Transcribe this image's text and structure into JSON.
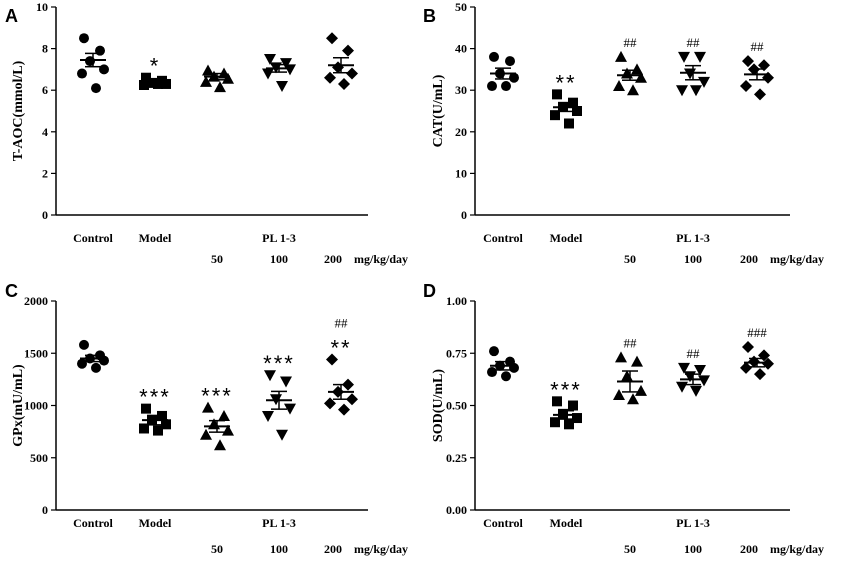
{
  "chart_data": [
    {
      "panel": "A",
      "type": "scatter",
      "ylabel": "T-AOC(mmol/L)",
      "ylim": [
        0,
        10
      ],
      "yticks": [
        0,
        2,
        4,
        6,
        8,
        10
      ],
      "groups": [
        {
          "name": "Control",
          "marker": "circle",
          "values": [
            8.5,
            7.9,
            7.4,
            7.0,
            6.8,
            6.1
          ],
          "mean": 7.45,
          "sem": 0.32,
          "sig": "",
          "hash": ""
        },
        {
          "name": "Model",
          "marker": "square",
          "values": [
            6.6,
            6.45,
            6.35,
            6.3,
            6.25,
            6.3
          ],
          "mean": 6.4,
          "sem": 0.07,
          "sig": "*",
          "hash": ""
        },
        {
          "name": "50",
          "marker": "triangle-up",
          "values": [
            6.95,
            6.8,
            6.65,
            6.55,
            6.4,
            6.15
          ],
          "mean": 6.65,
          "sem": 0.15,
          "sig": "",
          "hash": ""
        },
        {
          "name": "100",
          "marker": "triangle-down",
          "values": [
            7.5,
            7.3,
            7.1,
            7.0,
            6.8,
            6.2
          ],
          "mean": 7.05,
          "sem": 0.18,
          "sig": "",
          "hash": ""
        },
        {
          "name": "200",
          "marker": "diamond",
          "values": [
            8.5,
            7.9,
            7.1,
            6.8,
            6.6,
            6.3
          ],
          "mean": 7.2,
          "sem": 0.36,
          "sig": "",
          "hash": ""
        }
      ]
    },
    {
      "panel": "B",
      "type": "scatter",
      "ylabel": "CAT(U/mL)",
      "ylim": [
        0,
        50
      ],
      "yticks": [
        0,
        10,
        20,
        30,
        40,
        50
      ],
      "groups": [
        {
          "name": "Control",
          "marker": "circle",
          "values": [
            38,
            37,
            34,
            33,
            31,
            31
          ],
          "mean": 34.0,
          "sem": 1.3,
          "sig": "",
          "hash": ""
        },
        {
          "name": "Model",
          "marker": "square",
          "values": [
            29,
            27,
            26,
            25,
            24,
            22
          ],
          "mean": 25.9,
          "sem": 1.0,
          "sig": "**",
          "hash": ""
        },
        {
          "name": "50",
          "marker": "triangle-up",
          "values": [
            38,
            35,
            34,
            33,
            31,
            30
          ],
          "mean": 33.6,
          "sem": 1.2,
          "sig": "",
          "hash": "##"
        },
        {
          "name": "100",
          "marker": "triangle-down",
          "values": [
            38,
            38,
            34,
            32,
            30,
            30
          ],
          "mean": 34.2,
          "sem": 1.7,
          "sig": "",
          "hash": "##"
        },
        {
          "name": "200",
          "marker": "diamond",
          "values": [
            37,
            36,
            35,
            33,
            31,
            29
          ],
          "mean": 33.8,
          "sem": 1.3,
          "sig": "",
          "hash": "##"
        }
      ]
    },
    {
      "panel": "C",
      "type": "scatter",
      "ylabel": "GPx(mU/mL)",
      "ylim": [
        0,
        2000
      ],
      "yticks": [
        0,
        500,
        1000,
        1500,
        2000
      ],
      "groups": [
        {
          "name": "Control",
          "marker": "circle",
          "values": [
            1580,
            1480,
            1450,
            1430,
            1400,
            1360
          ],
          "mean": 1450,
          "sem": 30,
          "sig": "",
          "hash": ""
        },
        {
          "name": "Model",
          "marker": "square",
          "values": [
            970,
            900,
            860,
            820,
            780,
            760
          ],
          "mean": 860,
          "sem": 45,
          "sig": "***",
          "hash": ""
        },
        {
          "name": "50",
          "marker": "triangle-up",
          "values": [
            980,
            900,
            820,
            760,
            720,
            620
          ],
          "mean": 800,
          "sem": 55,
          "sig": "***",
          "hash": ""
        },
        {
          "name": "100",
          "marker": "triangle-down",
          "values": [
            1290,
            1230,
            1060,
            970,
            900,
            720
          ],
          "mean": 1050,
          "sem": 85,
          "sig": "***",
          "hash": ""
        },
        {
          "name": "200",
          "marker": "diamond",
          "values": [
            1440,
            1200,
            1130,
            1060,
            1020,
            960
          ],
          "mean": 1130,
          "sem": 70,
          "sig": "**",
          "hash": "##"
        }
      ]
    },
    {
      "panel": "D",
      "type": "scatter",
      "ylabel": "SOD(U/mL)",
      "ylim": [
        0,
        1.0
      ],
      "yticks": [
        0.0,
        0.25,
        0.5,
        0.75,
        1.0
      ],
      "ytick_labels": [
        "0.00",
        "0.25",
        "0.50",
        "0.75",
        "1.00"
      ],
      "groups": [
        {
          "name": "Control",
          "marker": "circle",
          "values": [
            0.76,
            0.71,
            0.69,
            0.68,
            0.66,
            0.64
          ],
          "mean": 0.69,
          "sem": 0.02,
          "sig": "",
          "hash": ""
        },
        {
          "name": "Model",
          "marker": "square",
          "values": [
            0.52,
            0.5,
            0.46,
            0.44,
            0.42,
            0.41
          ],
          "mean": 0.455,
          "sem": 0.02,
          "sig": "***",
          "hash": ""
        },
        {
          "name": "50",
          "marker": "triangle-up",
          "values": [
            0.73,
            0.71,
            0.64,
            0.57,
            0.55,
            0.53
          ],
          "mean": 0.615,
          "sem": 0.05,
          "sig": "",
          "hash": "##"
        },
        {
          "name": "100",
          "marker": "triangle-down",
          "values": [
            0.68,
            0.67,
            0.64,
            0.62,
            0.59,
            0.57
          ],
          "mean": 0.625,
          "sem": 0.025,
          "sig": "",
          "hash": "##"
        },
        {
          "name": "200",
          "marker": "diamond",
          "values": [
            0.78,
            0.74,
            0.71,
            0.7,
            0.68,
            0.65
          ],
          "mean": 0.705,
          "sem": 0.02,
          "sig": "",
          "hash": "###"
        }
      ]
    }
  ],
  "labels": {
    "control": "Control",
    "model": "Model",
    "treatment": "PL 1-3",
    "doses": [
      "50",
      "100",
      "200"
    ],
    "unit": "mg/kg/day"
  }
}
